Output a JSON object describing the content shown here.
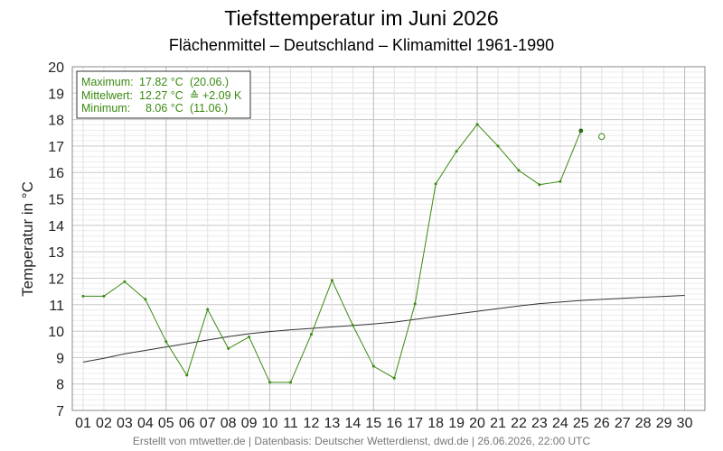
{
  "chart_data": {
    "type": "line",
    "title": "Tiefsttemperatur im Juni 2026",
    "subtitle": "Flächenmittel – Deutschland – Klimamittel 1961-1990",
    "ylabel": "Temperatur in °C",
    "xlabel": "",
    "ylim": [
      7,
      20
    ],
    "x_ticks": [
      "01",
      "02",
      "03",
      "04",
      "05",
      "06",
      "07",
      "08",
      "09",
      "10",
      "11",
      "12",
      "13",
      "14",
      "15",
      "16",
      "17",
      "18",
      "19",
      "20",
      "21",
      "22",
      "23",
      "24",
      "25",
      "26",
      "27",
      "28",
      "29",
      "30"
    ],
    "y_ticks": [
      "7",
      "8",
      "9",
      "10",
      "11",
      "12",
      "13",
      "14",
      "15",
      "16",
      "17",
      "18",
      "19",
      "20"
    ],
    "grid": true,
    "series": [
      {
        "color": "#3a8a10",
        "values": [
          11.32,
          11.32,
          11.87,
          11.2,
          9.6,
          8.33,
          10.82,
          9.34,
          9.78,
          8.06,
          8.06,
          9.88,
          11.92,
          10.22,
          8.67,
          8.22,
          11.03,
          15.57,
          16.8,
          17.82,
          17.0,
          16.08,
          15.54,
          15.66,
          17.58
        ]
      },
      {
        "color": "#333333",
        "values": [
          8.83,
          8.97,
          9.14,
          9.27,
          9.4,
          9.53,
          9.66,
          9.79,
          9.9,
          9.98,
          10.05,
          10.1,
          10.16,
          10.21,
          10.27,
          10.34,
          10.44,
          10.55,
          10.65,
          10.75,
          10.85,
          10.95,
          11.04,
          11.1,
          11.16,
          11.2,
          11.24,
          11.28,
          11.31,
          11.35
        ]
      }
    ],
    "forecast_point": {
      "day": "26",
      "value": 17.36
    },
    "legend": {
      "position": "top-left",
      "rows": [
        {
          "label": "Maximum:",
          "value": "17.82 °C",
          "extra": "(20.06.)"
        },
        {
          "label": "Mittelwert:",
          "value": "12.27 °C",
          "extra": "≙ +2.09 K"
        },
        {
          "label": "Minimum:",
          "value": "8.06 °C",
          "extra": "(11.06.)"
        }
      ]
    },
    "footer": "Erstellt von mtwetter.de | Datenbasis: Deutscher Wetterdienst, dwd.de | 26.06.2026, 22:00 UTC"
  }
}
